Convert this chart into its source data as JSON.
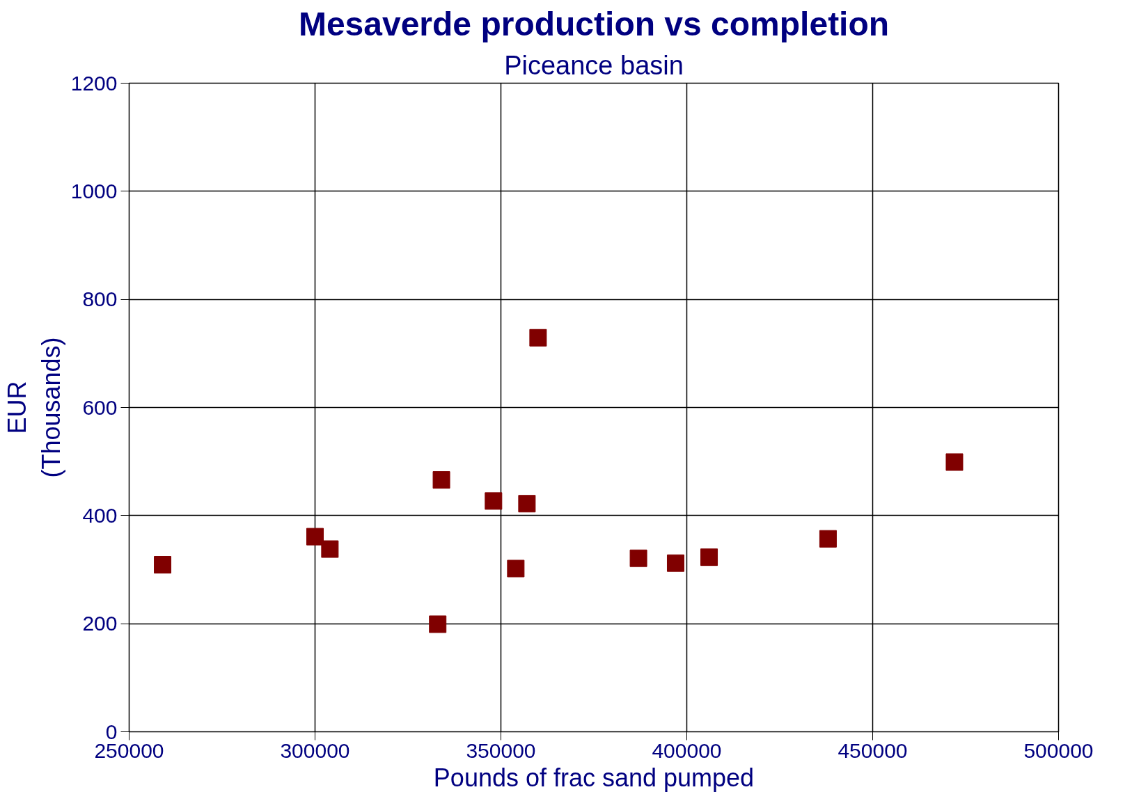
{
  "chart_data": {
    "type": "scatter",
    "title": "Mesaverde production vs completion",
    "subtitle": "Piceance basin",
    "xlabel": "Pounds of frac sand pumped",
    "ylabel": "EUR\n(Thousands)",
    "x": [
      259000,
      300000,
      304000,
      333000,
      334000,
      348000,
      354000,
      357000,
      360000,
      387000,
      397000,
      406000,
      438000,
      472000
    ],
    "series": [
      {
        "color": "#800000",
        "values": [
          309,
          361,
          338,
          199,
          466,
          427,
          302,
          422,
          729,
          321,
          312,
          323,
          357,
          499
        ]
      }
    ],
    "xlim": [
      250000,
      500000
    ],
    "ylim": [
      0,
      1200
    ],
    "xticks": [
      250000,
      300000,
      350000,
      400000,
      450000,
      500000
    ],
    "yticks": [
      0,
      200,
      400,
      600,
      800,
      1000,
      1200
    ],
    "grid": true,
    "marker": "square"
  }
}
